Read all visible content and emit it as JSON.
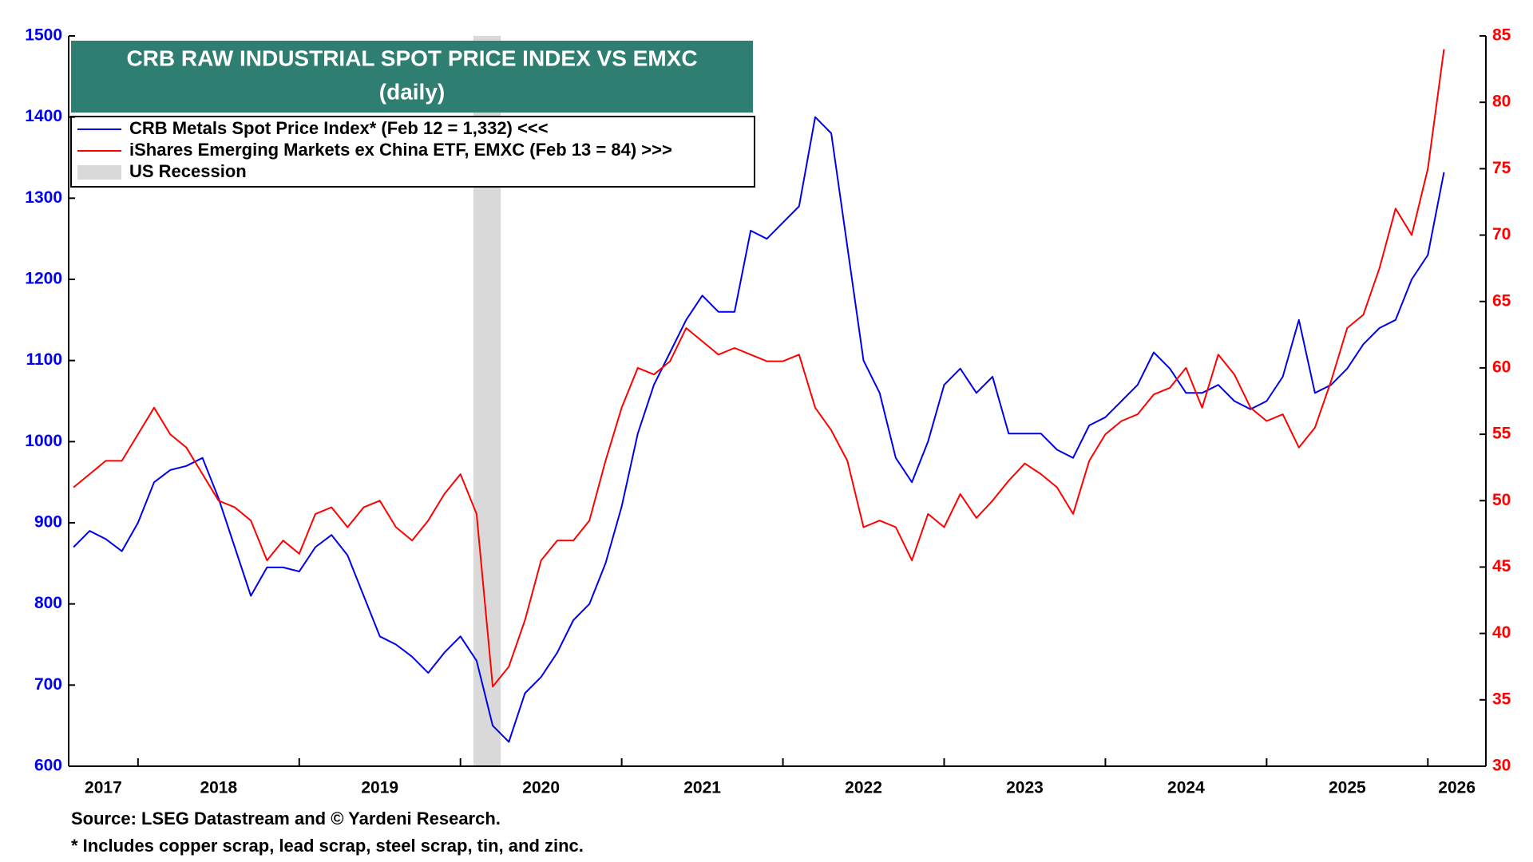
{
  "chart_data": {
    "type": "line",
    "title": "CRB RAW INDUSTRIAL SPOT PRICE INDEX VS EMXC",
    "subtitle": "(daily)",
    "notes": [
      "Source: LSEG Datastream and © Yardeni Research.",
      "* Includes copper scrap, lead scrap, steel scrap, tin, and zinc."
    ],
    "x": [
      2017.6,
      2017.7,
      2017.8,
      2017.9,
      2018.0,
      2018.1,
      2018.2,
      2018.3,
      2018.4,
      2018.5,
      2018.6,
      2018.7,
      2018.8,
      2018.9,
      2019.0,
      2019.1,
      2019.2,
      2019.3,
      2019.4,
      2019.5,
      2019.6,
      2019.7,
      2019.8,
      2019.9,
      2020.0,
      2020.1,
      2020.2,
      2020.3,
      2020.4,
      2020.5,
      2020.6,
      2020.7,
      2020.8,
      2020.9,
      2021.0,
      2021.1,
      2021.2,
      2021.3,
      2021.4,
      2021.5,
      2021.6,
      2021.7,
      2021.8,
      2021.9,
      2022.0,
      2022.1,
      2022.2,
      2022.3,
      2022.4,
      2022.5,
      2022.6,
      2022.7,
      2022.8,
      2022.9,
      2023.0,
      2023.1,
      2023.2,
      2023.3,
      2023.4,
      2023.5,
      2023.6,
      2023.7,
      2023.8,
      2023.9,
      2024.0,
      2024.1,
      2024.2,
      2024.3,
      2024.4,
      2024.5,
      2024.6,
      2024.7,
      2024.8,
      2024.9,
      2025.0,
      2025.1,
      2025.2,
      2025.3,
      2025.4,
      2025.5,
      2025.6,
      2025.7,
      2025.8,
      2025.9,
      2026.0,
      2026.1
    ],
    "series": [
      {
        "name": "CRB Metals Spot Price Index* (Feb 12 = 1,332) <<<",
        "color": "#0000ee",
        "axis": "y",
        "values": [
          870,
          890,
          880,
          865,
          900,
          950,
          965,
          970,
          980,
          930,
          870,
          810,
          845,
          845,
          840,
          870,
          885,
          860,
          810,
          760,
          750,
          735,
          715,
          740,
          760,
          730,
          650,
          630,
          690,
          710,
          740,
          780,
          800,
          850,
          920,
          1010,
          1070,
          1110,
          1150,
          1180,
          1160,
          1160,
          1260,
          1250,
          1270,
          1290,
          1400,
          1380,
          1240,
          1100,
          1060,
          980,
          950,
          1000,
          1070,
          1090,
          1060,
          1080,
          1010,
          1010,
          1010,
          990,
          980,
          1020,
          1030,
          1050,
          1070,
          1110,
          1090,
          1060,
          1060,
          1070,
          1050,
          1040,
          1050,
          1080,
          1150,
          1060,
          1070,
          1090,
          1120,
          1140,
          1150,
          1200,
          1230,
          1332
        ]
      },
      {
        "name": "iShares Emerging Markets ex China ETF, EMXC (Feb 13 = 84) >>>",
        "color": "#ff0000",
        "axis": "y2",
        "values": [
          51,
          52,
          53,
          53,
          55,
          57,
          55,
          54,
          52,
          50,
          49.5,
          48.5,
          45.5,
          47,
          46,
          49,
          49.5,
          48,
          49.5,
          50,
          48,
          47,
          48.5,
          50.5,
          52,
          49,
          36,
          37.5,
          41,
          45.5,
          47,
          47,
          48.5,
          53,
          57,
          60,
          59.5,
          60.5,
          63,
          62,
          61,
          61.5,
          61,
          60.5,
          60.5,
          61,
          57,
          55.3,
          53,
          48,
          48.5,
          48,
          45.5,
          49,
          48,
          50.5,
          48.7,
          50,
          51.5,
          52.8,
          52,
          51,
          49,
          53,
          55,
          56,
          56.5,
          58,
          58.5,
          60,
          57,
          61,
          59.5,
          57,
          56,
          56.5,
          54,
          55.5,
          59,
          63,
          64,
          67.5,
          72,
          70,
          75,
          84
        ]
      }
    ],
    "recession": {
      "name": "US Recession",
      "start": 2020.08,
      "end": 2020.25,
      "color": "#d9d9d9"
    },
    "xlim": [
      2017.57,
      2026.36
    ],
    "xticks": [
      2017,
      2018,
      2019,
      2020,
      2021,
      2022,
      2023,
      2024,
      2025,
      2026
    ],
    "ylim": [
      600,
      1500
    ],
    "yticks": [
      600,
      700,
      800,
      900,
      1000,
      1100,
      1200,
      1300,
      1400,
      1500
    ],
    "y2lim": [
      30,
      85
    ],
    "y2ticks": [
      30,
      35,
      40,
      45,
      50,
      55,
      60,
      65,
      70,
      75,
      80,
      85
    ],
    "title_color": "#2e7f72",
    "grid": false
  }
}
